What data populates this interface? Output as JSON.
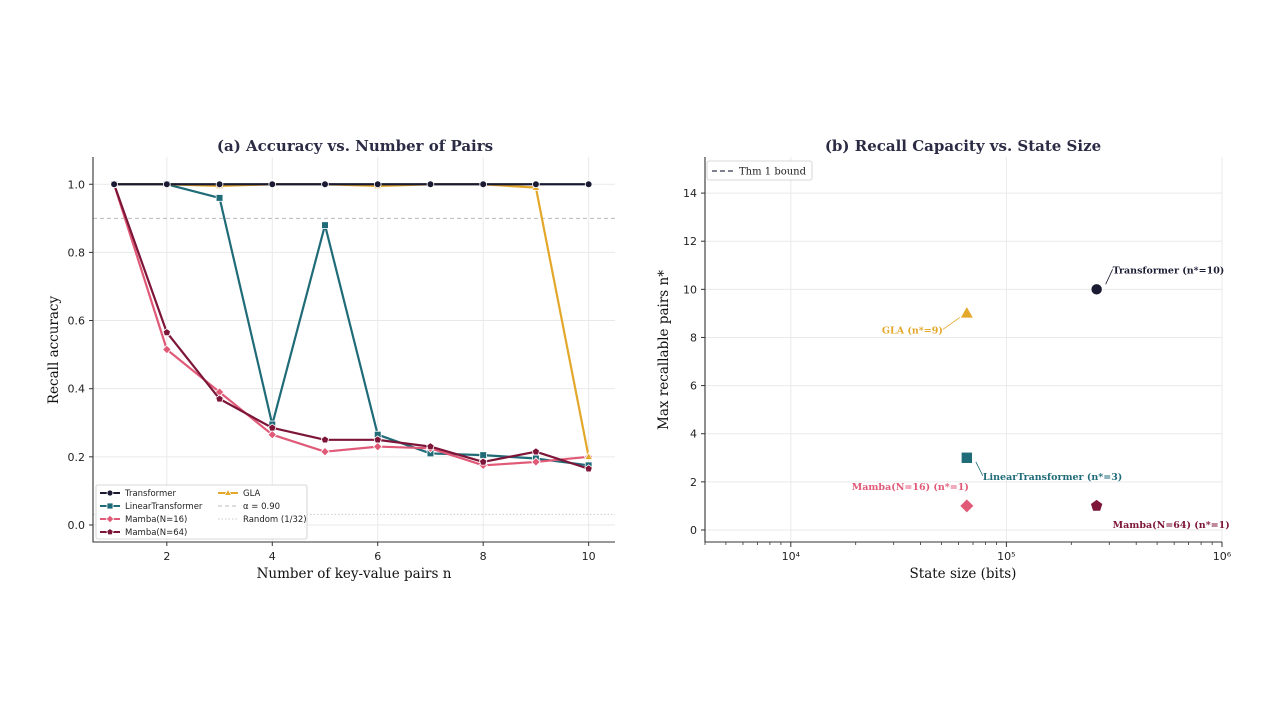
{
  "chart_data": [
    {
      "type": "line",
      "title": "(a) Accuracy vs. Number of Pairs",
      "xlabel": "Number of key-value pairs n",
      "ylabel": "Recall accuracy",
      "xlim": [
        0.6,
        10.5
      ],
      "ylim": [
        -0.05,
        1.08
      ],
      "xticks": [
        2,
        4,
        6,
        8,
        10
      ],
      "yticks": [
        0.0,
        0.2,
        0.4,
        0.6,
        0.8,
        1.0
      ],
      "ytick_labels": [
        "0.0",
        "0.2",
        "0.4",
        "0.6",
        "0.8",
        "1.0"
      ],
      "grid": true,
      "legend_position": "lower-left",
      "x": [
        1,
        2,
        3,
        4,
        5,
        6,
        7,
        8,
        9,
        10
      ],
      "series": [
        {
          "name": "Transformer",
          "color": "#1a1b33",
          "marker": "circle",
          "values": [
            1.0,
            1.0,
            1.0,
            1.0,
            1.0,
            1.0,
            1.0,
            1.0,
            1.0,
            1.0
          ]
        },
        {
          "name": "LinearTransformer",
          "color": "#1f6b78",
          "marker": "square",
          "values": [
            1.0,
            1.0,
            0.96,
            0.295,
            0.88,
            0.265,
            0.21,
            0.205,
            0.195,
            0.175
          ]
        },
        {
          "name": "Mamba(N=16)",
          "color": "#e05a78",
          "marker": "diamond",
          "values": [
            1.0,
            0.515,
            0.39,
            0.265,
            0.215,
            0.23,
            0.225,
            0.175,
            0.185,
            0.2
          ]
        },
        {
          "name": "Mamba(N=64)",
          "color": "#7d1538",
          "marker": "pentagon",
          "values": [
            1.0,
            0.565,
            0.37,
            0.285,
            0.25,
            0.25,
            0.23,
            0.185,
            0.215,
            0.165
          ]
        },
        {
          "name": "GLA",
          "color": "#e3a72a",
          "marker": "triangle",
          "values": [
            1.0,
            1.0,
            0.995,
            1.0,
            1.0,
            0.995,
            1.0,
            1.0,
            0.99,
            0.2
          ]
        }
      ],
      "reference_lines": [
        {
          "name": "α = 0.90",
          "y": 0.9,
          "style": "dashed",
          "color": "#bbbbbb"
        },
        {
          "name": "Random (1/32)",
          "y": 0.03125,
          "style": "dotted",
          "color": "#cccccc"
        }
      ]
    },
    {
      "type": "scatter",
      "title": "(b) Recall Capacity vs. State Size",
      "xlabel": "State size (bits)",
      "ylabel": "Max recallable pairs n*",
      "xscale": "log",
      "xlim": [
        4000,
        1000000
      ],
      "ylim": [
        -0.5,
        15.5
      ],
      "xticks": [
        10000,
        100000,
        1000000
      ],
      "xtick_labels": [
        "10⁴",
        "10⁵",
        "10⁶"
      ],
      "yticks": [
        0,
        2,
        4,
        6,
        8,
        10,
        12,
        14
      ],
      "grid": true,
      "legend_position": "top-left",
      "legend": [
        {
          "name": "Thm 1 bound",
          "style": "dashed",
          "color": "#555a6a"
        }
      ],
      "points": [
        {
          "name": "Transformer",
          "label": "Transformer (n*=10)",
          "x": 262144,
          "y": 10,
          "color": "#1a1b33",
          "marker": "circle"
        },
        {
          "name": "GLA",
          "label": "GLA (n*=9)",
          "x": 65536,
          "y": 9,
          "color": "#e3a72a",
          "marker": "triangle"
        },
        {
          "name": "LinearTransformer",
          "label": "LinearTransformer (n*=3)",
          "x": 65536,
          "y": 3,
          "color": "#1f6b78",
          "marker": "square"
        },
        {
          "name": "Mamba(N=16)",
          "label": "Mamba(N=16) (n*=1)",
          "x": 65536,
          "y": 1,
          "color": "#e05a78",
          "marker": "diamond"
        },
        {
          "name": "Mamba(N=64)",
          "label": "Mamba(N=64) (n*=1)",
          "x": 262144,
          "y": 1,
          "color": "#7d1538",
          "marker": "pentagon"
        }
      ]
    }
  ]
}
